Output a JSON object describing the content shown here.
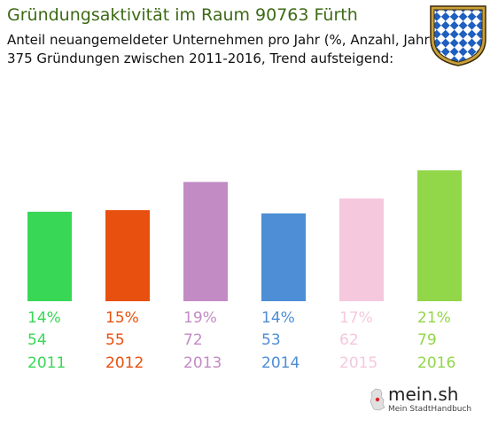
{
  "header": {
    "title": "Gründungsaktivität im Raum 90763 Fürth",
    "subtitle_line1": "Anteil neuangemeldeter Unternehmen pro Jahr (%, Anzahl, Jahr)",
    "subtitle_line2": "375 Gründungen zwischen 2011-2016, Trend aufsteigend:"
  },
  "crest": {
    "icon": "bavarian-coat-of-arms-icon"
  },
  "logo": {
    "name": "mein.sh",
    "tagline": "Mein StadtHandbuch"
  },
  "colors": {
    "title": "#3d6a16",
    "bars": [
      "#38d856",
      "#e8500f",
      "#c28bc4",
      "#4d8ed6",
      "#f5c8de",
      "#92d64a"
    ]
  },
  "chart_data": {
    "type": "bar",
    "title": "Gründungsaktivität im Raum 90763 Fürth",
    "categories": [
      "2011",
      "2012",
      "2013",
      "2014",
      "2015",
      "2016"
    ],
    "values": [
      54,
      55,
      72,
      53,
      62,
      79
    ],
    "percent_labels": [
      "14%",
      "15%",
      "19%",
      "14%",
      "17%",
      "21%"
    ],
    "count_labels": [
      "54",
      "55",
      "72",
      "53",
      "62",
      "79"
    ],
    "ylim": [
      0,
      100
    ],
    "grid": false,
    "legend": "none"
  }
}
